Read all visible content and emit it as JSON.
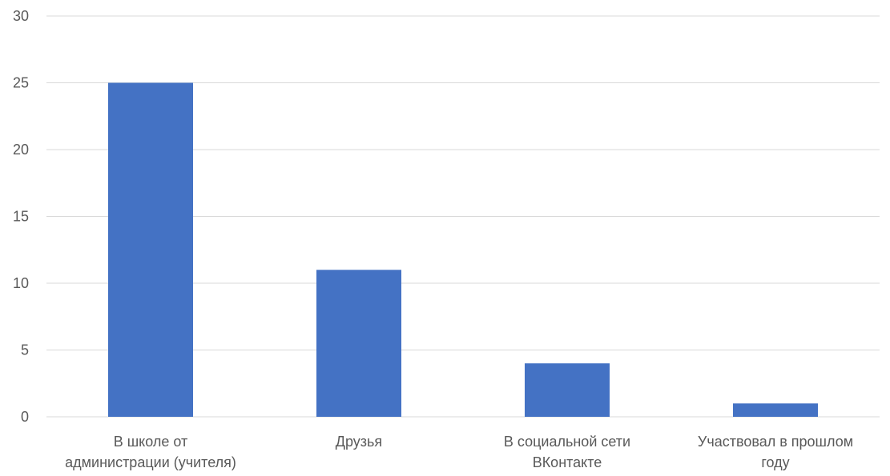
{
  "chart_data": {
    "type": "bar",
    "categories": [
      [
        "В школе от",
        "администрации (учителя)"
      ],
      [
        "Друзья"
      ],
      [
        "В социальной сети",
        "ВКонтакте"
      ],
      [
        "Участвовал в прошлом",
        "году"
      ]
    ],
    "values": [
      25,
      11,
      4,
      1
    ],
    "ylim": [
      0,
      30
    ],
    "yticks": [
      0,
      5,
      10,
      15,
      20,
      25,
      30
    ],
    "grid": true,
    "bar_color": "#4472C4",
    "grid_color": "#D9D9D9"
  }
}
